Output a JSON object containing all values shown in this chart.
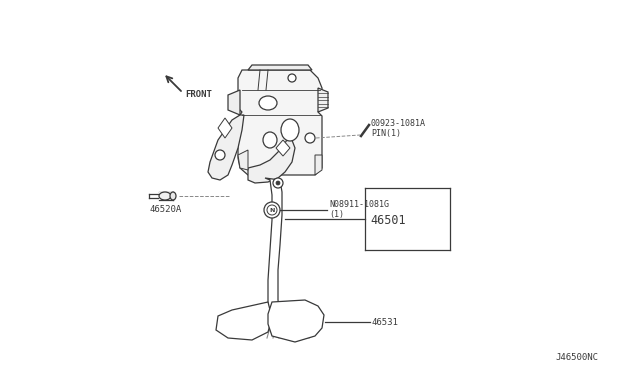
{
  "background_color": "#ffffff",
  "line_color": "#3a3a3a",
  "labels": {
    "part_number_top": "00923-1081A",
    "pin_label": "PIN(1)",
    "washer_part": "N08911-1081G",
    "washer_sub": "(1)",
    "pedal_arm": "46501",
    "pedal_bracket": "46520A",
    "pedal_pad": "46531",
    "front_label": "FRONT",
    "diagram_id": "J46500NC"
  },
  "figsize": [
    6.4,
    3.72
  ],
  "dpi": 100
}
